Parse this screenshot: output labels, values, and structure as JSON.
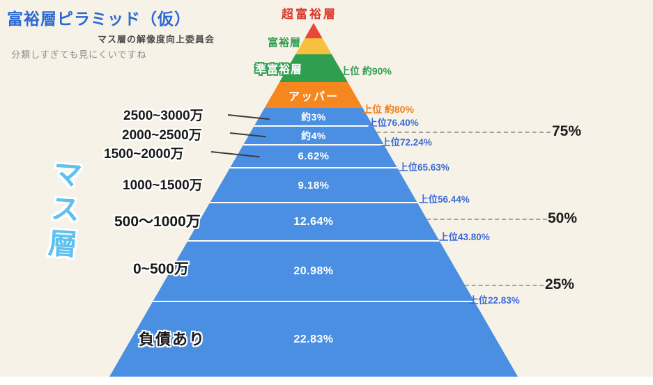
{
  "header": {
    "title": "富裕層ピラミッド（仮）",
    "subtitle": "マス層の解像度向上委員会",
    "note": "分類しすぎても見にくいですね"
  },
  "side_label": "マス層",
  "colors": {
    "background": "#f7f2e8",
    "title_blue": "#2b6ad3",
    "ultra_wealthy_red": "#e8483a",
    "wealthy_yellow": "#f6c13e",
    "semi_wealthy_green": "#2f9e4f",
    "upper_orange": "#f6871f",
    "mass_blue": "#4b8fe2",
    "cumulative_label_blue": "#3a6bd8",
    "side_label_blue": "#5ec1ef"
  },
  "chart_data": {
    "type": "pyramid",
    "title": "富裕層ピラミッド（仮）",
    "subtitle": "マス層の解像度向上委員会",
    "note": "分類しすぎても見にくいですね",
    "mass_group_label": "マス層",
    "layers": [
      {
        "name": "超富裕層",
        "color": "#e8483a"
      },
      {
        "name": "富裕層",
        "color": "#f6c13e"
      },
      {
        "name": "準富裕層",
        "color": "#2f9e4f",
        "cumulative": "上位 約90%"
      },
      {
        "name": "アッパー",
        "color": "#f6871f",
        "cumulative": "上位 約80%"
      },
      {
        "name": "2500~3000万",
        "share": "約3%",
        "cumulative": "上位76.40%",
        "color": "#4b8fe2"
      },
      {
        "name": "2000~2500万",
        "share": "約4%",
        "cumulative": "上位72.24%",
        "color": "#4b8fe2"
      },
      {
        "name": "1500~2000万",
        "share": "6.62%",
        "cumulative": "上位65.63%",
        "color": "#4b8fe2"
      },
      {
        "name": "1000~1500万",
        "share": "9.18%",
        "cumulative": "上位56.44%",
        "color": "#4b8fe2"
      },
      {
        "name": "500～1000万",
        "share": "12.64%",
        "cumulative": "上位43.80%",
        "color": "#4b8fe2"
      },
      {
        "name": "0~500万",
        "share": "20.98%",
        "cumulative": "上位22.83%",
        "color": "#4b8fe2"
      },
      {
        "name": "負債あり",
        "share": "22.83%",
        "color": "#4b8fe2"
      }
    ],
    "percentile_markers": [
      {
        "label": "75%"
      },
      {
        "label": "50%"
      },
      {
        "label": "25%"
      }
    ]
  }
}
